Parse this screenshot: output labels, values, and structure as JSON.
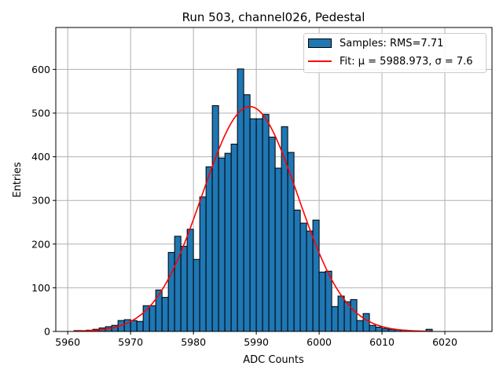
{
  "chart_data": {
    "type": "bar",
    "title": "Run 503, channel026, Pedestal",
    "xlabel": "ADC Counts",
    "ylabel": "Entries",
    "xlim": [
      5958.1,
      6027.5
    ],
    "ylim": [
      0,
      696
    ],
    "grid": true,
    "legend_position": "top-right",
    "xticks": [
      5960,
      5970,
      5980,
      5990,
      6000,
      6010,
      6020
    ],
    "yticks": [
      0,
      100,
      200,
      300,
      400,
      500,
      600
    ],
    "bin_start": 5961,
    "bin_width": 1,
    "values": [
      2,
      2,
      3,
      5,
      8,
      11,
      14,
      25,
      27,
      25,
      23,
      59,
      59,
      95,
      78,
      181,
      218,
      195,
      234,
      165,
      308,
      377,
      517,
      397,
      408,
      429,
      601,
      542,
      487,
      487,
      497,
      445,
      374,
      469,
      410,
      278,
      248,
      230,
      255,
      136,
      138,
      57,
      81,
      68,
      73,
      25,
      41,
      14,
      10,
      7,
      5,
      4,
      3,
      1,
      0,
      0,
      5
    ],
    "fit": {
      "mu": 5988.973,
      "sigma": 7.6,
      "amplitude": 515,
      "range": [
        5961,
        6018
      ]
    },
    "series": [
      {
        "name": "Samples: RMS=7.71",
        "kind": "histogram",
        "color": "#1f77b4"
      },
      {
        "name": "Fit: μ = 5988.973, σ = 7.6",
        "kind": "line",
        "color": "#ff0000"
      }
    ]
  }
}
